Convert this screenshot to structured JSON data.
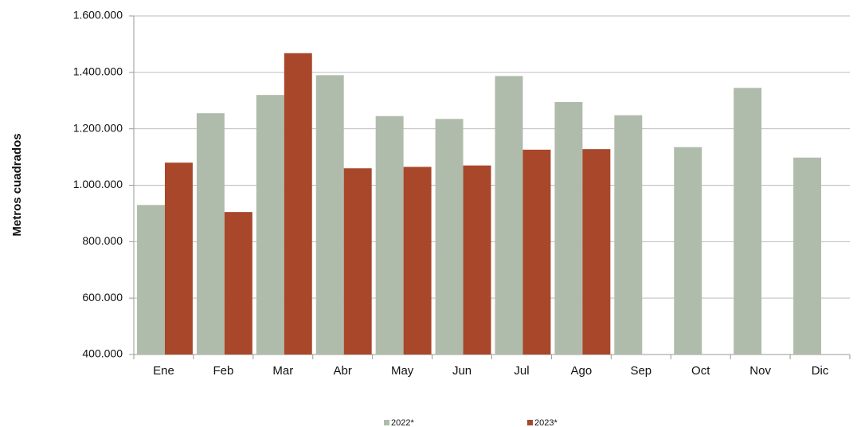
{
  "chart_data": {
    "type": "bar",
    "y_label": "Metros cuadrados",
    "categories": [
      "Ene",
      "Feb",
      "Mar",
      "Abr",
      "May",
      "Jun",
      "Jul",
      "Ago",
      "Sep",
      "Oct",
      "Nov",
      "Dic"
    ],
    "series": [
      {
        "name": "2022*",
        "color": "#b0bcab",
        "values": [
          930000,
          1255000,
          1320000,
          1390000,
          1245000,
          1235000,
          1387000,
          1295000,
          1248000,
          1135000,
          1345000,
          1098000
        ]
      },
      {
        "name": "2023*",
        "color": "#a8472a",
        "values": [
          1080000,
          905000,
          1468000,
          1060000,
          1065000,
          1070000,
          1126000,
          1128000,
          null,
          null,
          null,
          null
        ]
      }
    ],
    "ylim": [
      400000,
      1600000
    ],
    "yticks": [
      {
        "value": 400000,
        "label": "400.000"
      },
      {
        "value": 600000,
        "label": "600.000"
      },
      {
        "value": 800000,
        "label": "800.000"
      },
      {
        "value": 1000000,
        "label": "1.000.000"
      },
      {
        "value": 1200000,
        "label": "1.200.000"
      },
      {
        "value": 1400000,
        "label": "1.400.000"
      },
      {
        "value": 1600000,
        "label": "1.600.000"
      }
    ],
    "grid": true,
    "legend": "bottom"
  }
}
